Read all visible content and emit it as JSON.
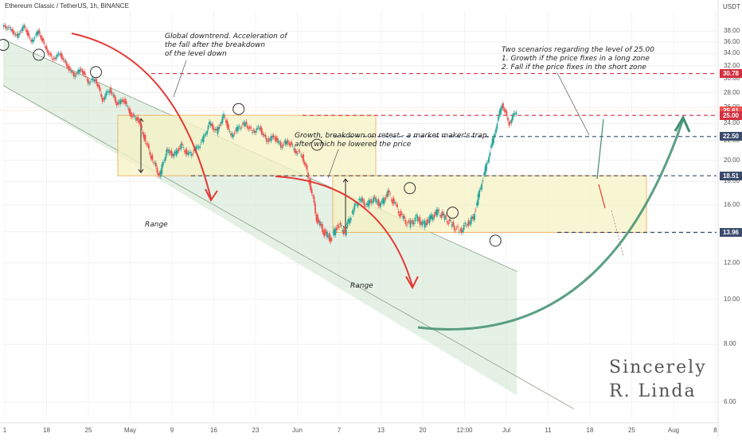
{
  "header": {
    "title": "Ethereum Classic / TetherUS, 1h, BINANCE"
  },
  "axis": {
    "unit": "USDT"
  },
  "signature": {
    "line1": "Sincerely",
    "line2": "R. Linda"
  },
  "annotations": {
    "downtrend": [
      "Global downtrend. Acceleration of",
      "the fall after the breakdown",
      "of the level down"
    ],
    "retest": [
      "Growth, breakdown on retest - a market maker's trap.",
      "after which he lowered the price"
    ],
    "scenarios": [
      "Two scenarios regarding the level of 25.00",
      "1. Growth if the price fixes in a long zone",
      "2. Fall if the price fixes in the short zone"
    ],
    "range_1": "Range",
    "range_2": "Range"
  },
  "colors": {
    "up": "#26a69a",
    "down": "#ef5350",
    "resistance": "#d32f3f",
    "support": "#3a4a6b",
    "channel_fill": "#cfe6cf",
    "range_fill": "#f6f3c4",
    "range_border": "#f0a040",
    "arrow_red": "#e53935",
    "arrow_green": "#3f8f6f"
  },
  "chart_data": {
    "type": "candlestick",
    "title": "Ethereum Classic / TetherUS, 1h, BINANCE",
    "ylabel": "USDT",
    "y_scale": "log",
    "ylim": [
      5.5,
      42
    ],
    "y_ticks": [
      6.0,
      8.0,
      10.0,
      12.0,
      14.0,
      16.0,
      18.0,
      20.0,
      22.0,
      24.0,
      26.0,
      28.0,
      30.0,
      32.0,
      34.0,
      36.0,
      38.0
    ],
    "x_ticks": [
      "1",
      "18",
      "25",
      "May",
      "9",
      "16",
      "23",
      "Jun",
      "7",
      "13",
      "20",
      "12:00",
      "Jul",
      "11",
      "18",
      "25",
      "Aug",
      "8"
    ],
    "price_levels": [
      {
        "label": "30.78",
        "value": 30.78,
        "style": "resistance"
      },
      {
        "label": "25.61",
        "value": 25.61,
        "style": "current"
      },
      {
        "label": "25.00",
        "value": 25.0,
        "style": "resistance"
      },
      {
        "label": "22.50",
        "value": 22.5,
        "style": "support"
      },
      {
        "label": "18.51",
        "value": 18.51,
        "style": "support"
      },
      {
        "label": "13.96",
        "value": 13.96,
        "style": "support"
      }
    ],
    "ranges": [
      {
        "x_start": "May",
        "x_end": "13",
        "y_low": 18.51,
        "y_high": 25.0
      },
      {
        "x_start": "7",
        "x_end": "25",
        "y_low": 13.96,
        "y_high": 18.51
      }
    ],
    "price_path": [
      [
        0,
        39.0
      ],
      [
        1,
        38.5
      ],
      [
        2,
        37.0
      ],
      [
        3,
        39.0
      ],
      [
        4,
        36.0
      ],
      [
        5,
        38.0
      ],
      [
        6,
        35.0
      ],
      [
        7,
        33.0
      ],
      [
        8,
        34.0
      ],
      [
        9,
        32.0
      ],
      [
        10,
        30.5
      ],
      [
        11,
        31.5
      ],
      [
        12,
        29.5
      ],
      [
        13,
        30.0
      ],
      [
        14,
        27.0
      ],
      [
        15,
        28.5
      ],
      [
        16,
        26.5
      ],
      [
        17,
        27.0
      ],
      [
        18,
        25.0
      ],
      [
        19,
        24.5
      ],
      [
        20,
        22.0
      ],
      [
        21,
        20.0
      ],
      [
        22,
        18.5
      ],
      [
        23,
        21.0
      ],
      [
        24,
        20.5
      ],
      [
        25,
        21.5
      ],
      [
        26,
        20.5
      ],
      [
        27,
        21.0
      ],
      [
        28,
        22.0
      ],
      [
        29,
        24.0
      ],
      [
        30,
        23.0
      ],
      [
        31,
        25.0
      ],
      [
        32,
        22.5
      ],
      [
        33,
        23.5
      ],
      [
        34,
        24.0
      ],
      [
        35,
        23.0
      ],
      [
        36,
        23.5
      ],
      [
        37,
        22.0
      ],
      [
        38,
        22.5
      ],
      [
        39,
        21.5
      ],
      [
        40,
        22.0
      ],
      [
        41,
        21.0
      ],
      [
        42,
        20.5
      ],
      [
        43,
        18.0
      ],
      [
        44,
        15.0
      ],
      [
        45,
        14.0
      ],
      [
        46,
        13.5
      ],
      [
        47,
        14.5
      ],
      [
        48,
        14.0
      ],
      [
        49,
        15.5
      ],
      [
        50,
        16.5
      ],
      [
        51,
        16.0
      ],
      [
        52,
        16.5
      ],
      [
        53,
        16.0
      ],
      [
        54,
        17.0
      ],
      [
        55,
        16.0
      ],
      [
        56,
        15.0
      ],
      [
        57,
        14.5
      ],
      [
        58,
        15.0
      ],
      [
        59,
        14.5
      ],
      [
        60,
        15.0
      ],
      [
        61,
        15.5
      ],
      [
        62,
        15.0
      ],
      [
        63,
        14.5
      ],
      [
        64,
        14.0
      ],
      [
        65,
        14.5
      ],
      [
        66,
        15.0
      ],
      [
        67,
        17.5
      ],
      [
        68,
        20.0
      ],
      [
        69,
        23.0
      ],
      [
        70,
        26.5
      ],
      [
        71,
        24.0
      ],
      [
        72,
        25.61
      ]
    ],
    "events": [
      {
        "type": "circle",
        "x": 0,
        "y": 35.5
      },
      {
        "type": "circle",
        "x": 5,
        "y": 33.8
      },
      {
        "type": "circle",
        "x": 13,
        "y": 31.0
      },
      {
        "type": "circle",
        "x": 33,
        "y": 25.8
      },
      {
        "type": "circle",
        "x": 44,
        "y": 21.6
      },
      {
        "type": "circle",
        "x": 57,
        "y": 17.4
      },
      {
        "type": "circle",
        "x": 63,
        "y": 15.4
      },
      {
        "type": "circle",
        "x": 69,
        "y": 13.4
      }
    ]
  }
}
